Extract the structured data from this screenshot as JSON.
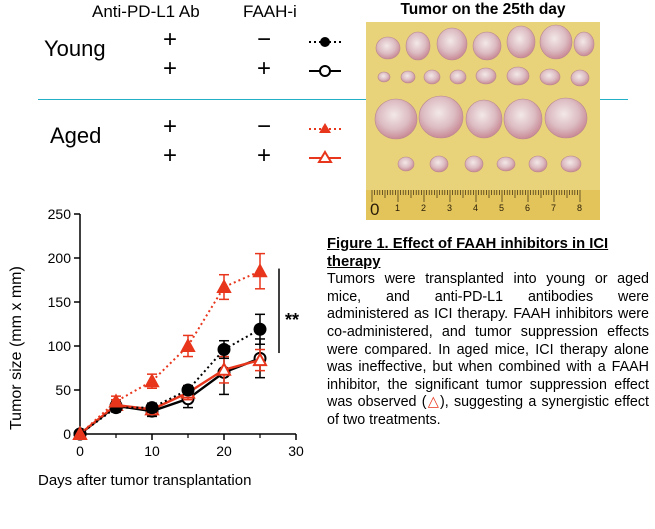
{
  "legend_table": {
    "col_antibody": "Anti-PD-L1 Ab",
    "col_faah": "FAAH-i",
    "groups": [
      {
        "label": "Young",
        "rows": [
          {
            "ab": "+",
            "faah": "−"
          },
          {
            "ab": "+",
            "faah": "+"
          }
        ]
      },
      {
        "label": "Aged",
        "rows": [
          {
            "ab": "+",
            "faah": "−"
          },
          {
            "ab": "+",
            "faah": "+"
          }
        ]
      }
    ]
  },
  "photo": {
    "title": "Tumor on the 25th day",
    "ruler_labels": [
      "0",
      "1",
      "2",
      "3",
      "4",
      "5",
      "6",
      "7",
      "8"
    ]
  },
  "caption": {
    "title": "Figure 1. Effect of FAAH inhibitors in ICI therapy",
    "body_before_symbol": "Tumors were transplanted into young or aged mice, and anti-PD-L1 antibodies were administered as ICI therapy. FAAH inhibitors were co-administered, and tumor suppression effects were compared. In aged mice, ICI therapy alone was ineffective, but when combined with a FAAH inhibitor, the significant tumor suppression effect was observed (",
    "symbol": "△",
    "body_after_symbol": "), suggesting a synergistic effect of two treatments."
  },
  "colors": {
    "aged": "#e8361c",
    "young": "#000000",
    "divider": "#22b0c8"
  },
  "chart_data": {
    "type": "line",
    "xlabel": "Days after tumor transplantation",
    "ylabel": "Tumor size (mm x mm)",
    "xlim": [
      0,
      30
    ],
    "ylim": [
      0,
      250
    ],
    "xticks": [
      0,
      10,
      20,
      30
    ],
    "yticks": [
      0,
      50,
      100,
      150,
      200,
      250
    ],
    "x": [
      0,
      5,
      10,
      15,
      20,
      25
    ],
    "significance": "**",
    "series": [
      {
        "key": "young-antibody",
        "color": "#000000",
        "dash": "dotted",
        "marker": "circle",
        "filled": true,
        "values": [
          0,
          30,
          30,
          50,
          96,
          119
        ],
        "err": [
          0,
          5,
          5,
          5,
          10,
          17
        ]
      },
      {
        "key": "young-antibody-faah",
        "color": "#000000",
        "dash": "solid",
        "marker": "circle",
        "filled": false,
        "values": [
          0,
          32,
          26,
          40,
          70,
          86
        ],
        "err": [
          0,
          5,
          6,
          10,
          25,
          22
        ]
      },
      {
        "key": "aged-antibody",
        "color": "#e8361c",
        "dash": "dotted",
        "marker": "triangle",
        "filled": true,
        "values": [
          0,
          37,
          60,
          100,
          167,
          185
        ],
        "err": [
          0,
          6,
          8,
          12,
          14,
          20
        ]
      },
      {
        "key": "aged-antibody-faah",
        "color": "#e8361c",
        "dash": "solid",
        "marker": "triangle",
        "filled": false,
        "values": [
          0,
          33,
          28,
          47,
          73,
          84
        ],
        "err": [
          0,
          6,
          5,
          8,
          15,
          12
        ]
      }
    ]
  }
}
